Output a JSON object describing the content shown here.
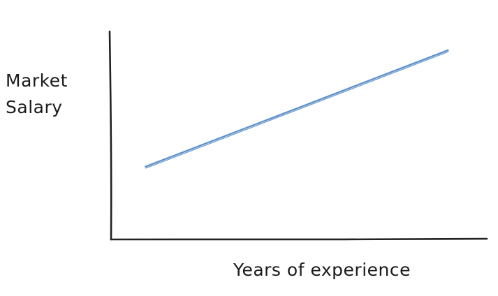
{
  "chart_data": {
    "type": "line",
    "title": "",
    "xlabel": "Years of experience",
    "ylabel": [
      "Market",
      "Salary"
    ],
    "xlim": [
      0,
      100
    ],
    "ylim": [
      0,
      100
    ],
    "grid": false,
    "show_ticks": false,
    "series": [
      {
        "x": [
          9,
          90
        ],
        "values": [
          35,
          91
        ]
      }
    ],
    "colors": {
      "axis": "#222222",
      "line": "#5b8fc9"
    }
  }
}
